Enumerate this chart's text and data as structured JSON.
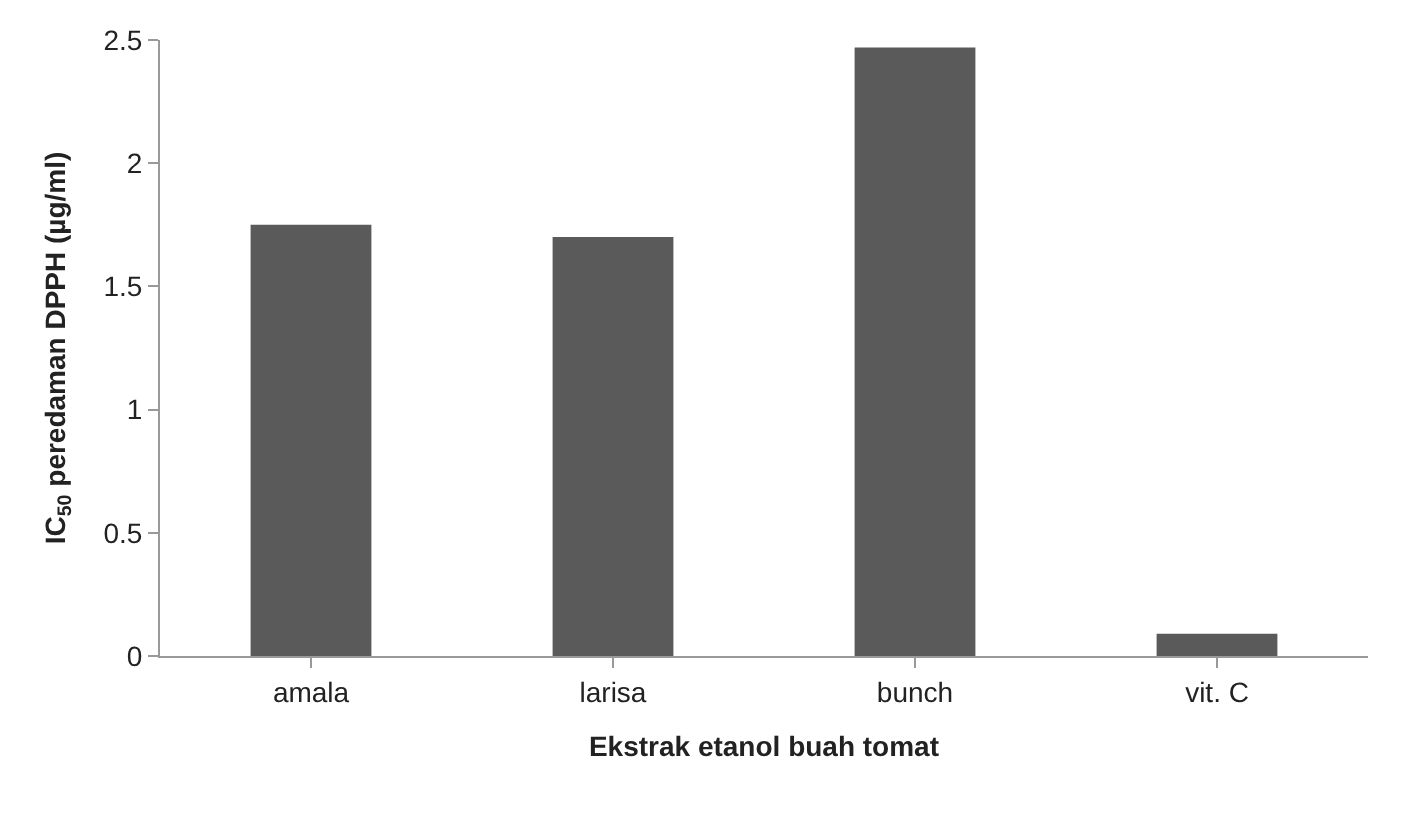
{
  "chart_data": {
    "type": "bar",
    "xlabel": "Ekstrak etanol buah tomat",
    "ylabel": "IC$_{50}$ peredaman DPPH (µg/ml)",
    "categories": [
      "amala",
      "larisa",
      "bunch",
      "vit. C"
    ],
    "values": [
      1.75,
      1.7,
      2.47,
      0.09
    ],
    "color": "#5a5a5a",
    "ylim": [
      0,
      2.5
    ],
    "yticks": [
      0,
      0.5,
      1,
      1.5,
      2,
      2.5
    ],
    "grid": false
  }
}
